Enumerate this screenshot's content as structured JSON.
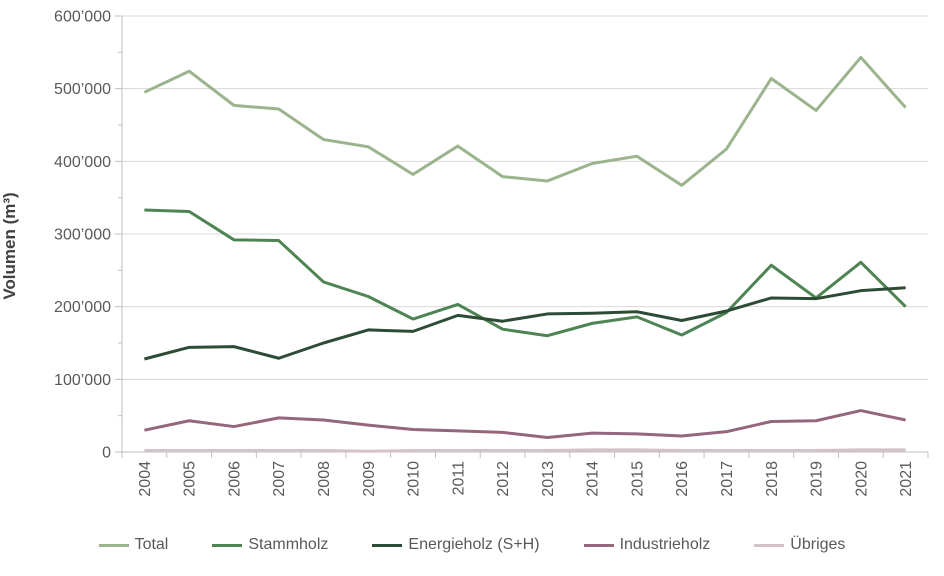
{
  "page": {
    "background": "#ffffff",
    "text_color": "#595959",
    "title_color": "#404040"
  },
  "chart_data": {
    "type": "line",
    "title": "",
    "xlabel": "",
    "ylabel": "Volumen (m³)",
    "ylim": [
      0,
      600000
    ],
    "y_tick_step": 100000,
    "y_minor_tick_step": 50000,
    "grid": "horizontal",
    "grid_color": "#d9d9d9",
    "axis_color": "#bfbfbf",
    "tick_text_color": "#595959",
    "legend_position": "bottom",
    "y_ticks": [
      {
        "v": 0,
        "label": "0"
      },
      {
        "v": 100000,
        "label": "100’000"
      },
      {
        "v": 200000,
        "label": "200’000"
      },
      {
        "v": 300000,
        "label": "300’000"
      },
      {
        "v": 400000,
        "label": "400’000"
      },
      {
        "v": 500000,
        "label": "500’000"
      },
      {
        "v": 600000,
        "label": "600’000"
      }
    ],
    "categories": [
      "2004",
      "2005",
      "2006",
      "2007",
      "2008",
      "2009",
      "2010",
      "2011",
      "2012",
      "2013",
      "2014",
      "2015",
      "2016",
      "2017",
      "2018",
      "2019",
      "2020",
      "2021"
    ],
    "series": [
      {
        "name": "Total",
        "color": "#9cb48d",
        "values": [
          495000,
          524000,
          477000,
          472000,
          430000,
          420000,
          382000,
          421000,
          379000,
          373000,
          397000,
          407000,
          367000,
          417000,
          514000,
          470000,
          543000,
          474000
        ]
      },
      {
        "name": "Stammholz",
        "color": "#4e8453",
        "values": [
          333000,
          331000,
          292000,
          291000,
          234000,
          214000,
          183000,
          203000,
          169000,
          160000,
          177000,
          186000,
          161000,
          192000,
          257000,
          212000,
          261000,
          200000
        ]
      },
      {
        "name": "Energieholz (S+H)",
        "color": "#2e4b35",
        "values": [
          128000,
          144000,
          145000,
          129000,
          150000,
          168000,
          166000,
          188000,
          180000,
          190000,
          191000,
          193000,
          181000,
          194000,
          212000,
          211000,
          222000,
          226000
        ]
      },
      {
        "name": "Industrieholz",
        "color": "#95667c",
        "values": [
          30000,
          43000,
          35000,
          47000,
          44000,
          37000,
          31000,
          29000,
          27000,
          20000,
          26000,
          25000,
          22000,
          28000,
          42000,
          43000,
          57000,
          44000
        ]
      },
      {
        "name": "Übriges",
        "color": "#d4c2c9",
        "values": [
          2000,
          2000,
          2000,
          2000,
          2000,
          1000,
          2000,
          2000,
          2000,
          2000,
          3000,
          3000,
          2000,
          2000,
          2000,
          2000,
          3000,
          3000
        ]
      }
    ]
  }
}
